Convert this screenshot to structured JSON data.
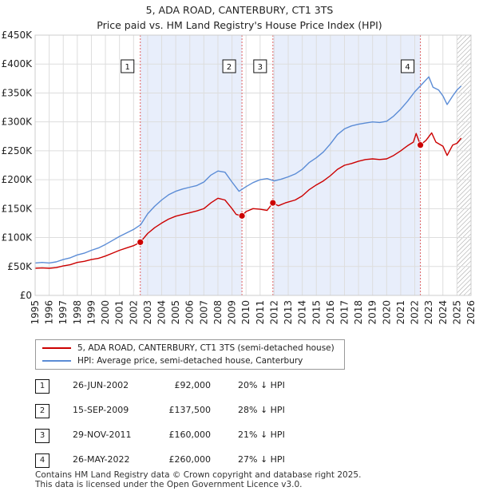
{
  "title": {
    "line1": "5, ADA ROAD, CANTERBURY, CT1 3TS",
    "line2": "Price paid vs. HM Land Registry's House Price Index (HPI)"
  },
  "colors": {
    "property": "#cc0000",
    "hpi": "#5b8cd6",
    "shade": "#e8eefb",
    "grid": "#dddddd"
  },
  "chart_data": {
    "type": "line",
    "title": "Price paid vs. HM Land Registry's House Price Index (HPI)",
    "xlabel": "",
    "ylabel": "",
    "xlim": [
      1995,
      2026
    ],
    "ylim": [
      0,
      450000
    ],
    "x_ticks": [
      "1995",
      "1996",
      "1997",
      "1998",
      "1999",
      "2000",
      "2001",
      "2002",
      "2003",
      "2004",
      "2005",
      "2006",
      "2007",
      "2008",
      "2009",
      "2010",
      "2011",
      "2012",
      "2013",
      "2014",
      "2015",
      "2016",
      "2017",
      "2018",
      "2019",
      "2020",
      "2021",
      "2022",
      "2023",
      "2024",
      "2025",
      "2026"
    ],
    "y_ticks": [
      {
        "value": 0,
        "label": "£0"
      },
      {
        "value": 50000,
        "label": "£50K"
      },
      {
        "value": 100000,
        "label": "£100K"
      },
      {
        "value": 150000,
        "label": "£150K"
      },
      {
        "value": 200000,
        "label": "£200K"
      },
      {
        "value": 250000,
        "label": "£250K"
      },
      {
        "value": 300000,
        "label": "£300K"
      },
      {
        "value": 350000,
        "label": "£350K"
      },
      {
        "value": 400000,
        "label": "£400K"
      },
      {
        "value": 450000,
        "label": "£450K"
      }
    ],
    "grid": true,
    "series": [
      {
        "name": "5, ADA ROAD, CANTERBURY, CT1 3TS (semi-detached house)",
        "color": "#cc0000",
        "points": [
          [
            1995.0,
            47000
          ],
          [
            1995.5,
            47500
          ],
          [
            1996.0,
            47000
          ],
          [
            1996.5,
            48000
          ],
          [
            1997.0,
            51000
          ],
          [
            1997.5,
            53000
          ],
          [
            1998.0,
            57000
          ],
          [
            1998.5,
            59000
          ],
          [
            1999.0,
            62000
          ],
          [
            1999.5,
            64000
          ],
          [
            2000.0,
            68000
          ],
          [
            2000.5,
            73000
          ],
          [
            2001.0,
            78000
          ],
          [
            2001.5,
            82000
          ],
          [
            2002.0,
            86000
          ],
          [
            2002.48,
            92000
          ],
          [
            2003.0,
            107000
          ],
          [
            2003.5,
            117000
          ],
          [
            2004.0,
            125000
          ],
          [
            2004.5,
            132000
          ],
          [
            2005.0,
            137000
          ],
          [
            2005.5,
            140000
          ],
          [
            2006.0,
            143000
          ],
          [
            2006.5,
            146000
          ],
          [
            2007.0,
            150000
          ],
          [
            2007.5,
            160000
          ],
          [
            2008.0,
            168000
          ],
          [
            2008.5,
            165000
          ],
          [
            2009.0,
            150000
          ],
          [
            2009.3,
            140000
          ],
          [
            2009.71,
            137500
          ],
          [
            2010.0,
            145000
          ],
          [
            2010.5,
            150000
          ],
          [
            2011.0,
            149000
          ],
          [
            2011.5,
            147000
          ],
          [
            2011.91,
            160000
          ],
          [
            2012.3,
            155000
          ],
          [
            2012.8,
            160000
          ],
          [
            2013.5,
            165000
          ],
          [
            2014.0,
            172000
          ],
          [
            2014.5,
            183000
          ],
          [
            2015.0,
            191000
          ],
          [
            2015.5,
            198000
          ],
          [
            2016.0,
            207000
          ],
          [
            2016.5,
            218000
          ],
          [
            2017.0,
            225000
          ],
          [
            2017.5,
            228000
          ],
          [
            2018.0,
            232000
          ],
          [
            2018.5,
            235000
          ],
          [
            2019.0,
            236000
          ],
          [
            2019.5,
            235000
          ],
          [
            2020.0,
            236000
          ],
          [
            2020.5,
            242000
          ],
          [
            2021.0,
            250000
          ],
          [
            2021.5,
            259000
          ],
          [
            2021.9,
            265000
          ],
          [
            2022.1,
            280000
          ],
          [
            2022.4,
            260000
          ],
          [
            2022.8,
            268000
          ],
          [
            2023.2,
            281000
          ],
          [
            2023.5,
            265000
          ],
          [
            2024.0,
            258000
          ],
          [
            2024.3,
            242000
          ],
          [
            2024.7,
            260000
          ],
          [
            2025.0,
            263000
          ],
          [
            2025.3,
            272000
          ]
        ]
      },
      {
        "name": "HPI: Average price, semi-detached house, Canterbury",
        "color": "#5b8cd6",
        "points": [
          [
            1995.0,
            56000
          ],
          [
            1995.5,
            57000
          ],
          [
            1996.0,
            56000
          ],
          [
            1996.5,
            58000
          ],
          [
            1997.0,
            62000
          ],
          [
            1997.5,
            65000
          ],
          [
            1998.0,
            70000
          ],
          [
            1998.5,
            73000
          ],
          [
            1999.0,
            78000
          ],
          [
            1999.5,
            82000
          ],
          [
            2000.0,
            88000
          ],
          [
            2000.5,
            95000
          ],
          [
            2001.0,
            102000
          ],
          [
            2001.5,
            108000
          ],
          [
            2002.0,
            114000
          ],
          [
            2002.5,
            122000
          ],
          [
            2003.0,
            141000
          ],
          [
            2003.5,
            154000
          ],
          [
            2004.0,
            165000
          ],
          [
            2004.5,
            174000
          ],
          [
            2005.0,
            180000
          ],
          [
            2005.5,
            184000
          ],
          [
            2006.0,
            187000
          ],
          [
            2006.5,
            190000
          ],
          [
            2007.0,
            196000
          ],
          [
            2007.5,
            208000
          ],
          [
            2008.0,
            215000
          ],
          [
            2008.5,
            213000
          ],
          [
            2009.0,
            196000
          ],
          [
            2009.5,
            180000
          ],
          [
            2010.0,
            188000
          ],
          [
            2010.5,
            195000
          ],
          [
            2011.0,
            200000
          ],
          [
            2011.5,
            202000
          ],
          [
            2012.0,
            198000
          ],
          [
            2012.5,
            201000
          ],
          [
            2013.0,
            205000
          ],
          [
            2013.5,
            210000
          ],
          [
            2014.0,
            218000
          ],
          [
            2014.5,
            230000
          ],
          [
            2015.0,
            238000
          ],
          [
            2015.5,
            248000
          ],
          [
            2016.0,
            262000
          ],
          [
            2016.5,
            278000
          ],
          [
            2017.0,
            288000
          ],
          [
            2017.5,
            293000
          ],
          [
            2018.0,
            296000
          ],
          [
            2018.5,
            298000
          ],
          [
            2019.0,
            300000
          ],
          [
            2019.5,
            299000
          ],
          [
            2020.0,
            301000
          ],
          [
            2020.5,
            310000
          ],
          [
            2021.0,
            322000
          ],
          [
            2021.5,
            336000
          ],
          [
            2022.0,
            352000
          ],
          [
            2022.5,
            365000
          ],
          [
            2023.0,
            378000
          ],
          [
            2023.3,
            360000
          ],
          [
            2023.7,
            355000
          ],
          [
            2024.0,
            345000
          ],
          [
            2024.3,
            330000
          ],
          [
            2024.7,
            345000
          ],
          [
            2025.0,
            355000
          ],
          [
            2025.3,
            362000
          ]
        ]
      }
    ],
    "sales": [
      {
        "label": "1",
        "x": 2002.48,
        "price": 92000
      },
      {
        "label": "2",
        "x": 2009.71,
        "price": 137500
      },
      {
        "label": "3",
        "x": 2011.91,
        "price": 160000
      },
      {
        "label": "4",
        "x": 2022.4,
        "price": 260000
      }
    ],
    "shaded_ranges": [
      [
        2002.48,
        2009.71
      ],
      [
        2011.91,
        2022.4
      ]
    ],
    "future_hatch_from": 2025.0
  },
  "legend": {
    "property": "5, ADA ROAD, CANTERBURY, CT1 3TS (semi-detached house)",
    "hpi": "HPI: Average price, semi-detached house, Canterbury"
  },
  "sales_table": [
    {
      "num": "1",
      "date": "26-JUN-2002",
      "price": "£92,000",
      "hpi": "20% ↓ HPI"
    },
    {
      "num": "2",
      "date": "15-SEP-2009",
      "price": "£137,500",
      "hpi": "28% ↓ HPI"
    },
    {
      "num": "3",
      "date": "29-NOV-2011",
      "price": "£160,000",
      "hpi": "21% ↓ HPI"
    },
    {
      "num": "4",
      "date": "26-MAY-2022",
      "price": "£260,000",
      "hpi": "27% ↓ HPI"
    }
  ],
  "footer": {
    "line1": "Contains HM Land Registry data © Crown copyright and database right 2025.",
    "line2": "This data is licensed under the Open Government Licence v3.0."
  }
}
